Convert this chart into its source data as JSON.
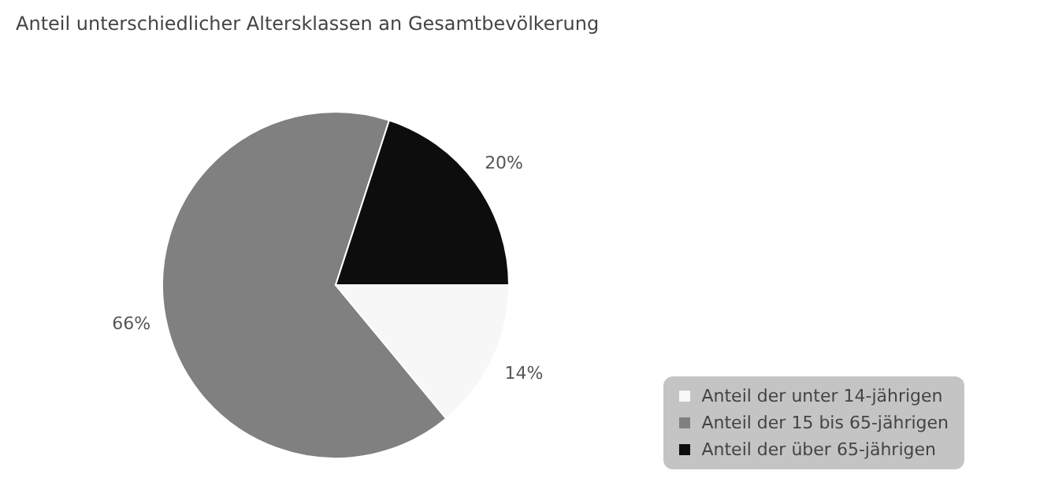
{
  "chart_data": {
    "type": "pie",
    "title": "Anteil unterschiedlicher Altersklassen an Gesamtbevölkerung",
    "categories": [
      "Anteil der unter 14-jährigen",
      "Anteil der 15 bis 65-jährigen",
      "Anteil der über 65-jährigen"
    ],
    "values": [
      14,
      66,
      20
    ],
    "colors": [
      "#f7f7f7",
      "#808080",
      "#0d0d0d"
    ],
    "value_labels": [
      "14%",
      "66%",
      "20%"
    ],
    "legend": "bottom right"
  }
}
